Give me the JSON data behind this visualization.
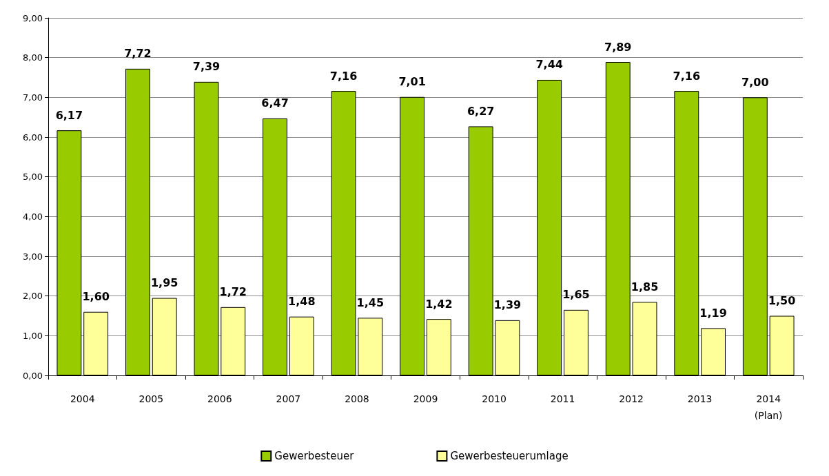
{
  "chart_data": {
    "type": "bar",
    "categories": [
      "2004",
      "2005",
      "2006",
      "2007",
      "2008",
      "2009",
      "2010",
      "2011",
      "2012",
      "2013",
      "2014\n(Plan)"
    ],
    "series": [
      {
        "name": "Gewerbesteuer",
        "color": "#99cc00",
        "values": [
          6.17,
          7.72,
          7.39,
          6.47,
          7.16,
          7.01,
          6.27,
          7.44,
          7.89,
          7.16,
          7.0
        ],
        "value_labels": [
          "6,17",
          "7,72",
          "7,39",
          "6,47",
          "7,16",
          "7,01",
          "6,27",
          "7,44",
          "7,89",
          "7,16",
          "7,00"
        ]
      },
      {
        "name": "Gewerbesteuerumlage",
        "color": "#ffff99",
        "values": [
          1.6,
          1.95,
          1.72,
          1.48,
          1.45,
          1.42,
          1.39,
          1.65,
          1.85,
          1.19,
          1.5
        ],
        "value_labels": [
          "1,60",
          "1,95",
          "1,72",
          "1,48",
          "1,45",
          "1,42",
          "1,39",
          "1,65",
          "1,85",
          "1,19",
          "1,50"
        ]
      }
    ],
    "ylim": [
      0,
      9
    ],
    "yticks": [
      {
        "value": 0,
        "label": "0,00"
      },
      {
        "value": 1,
        "label": "1,00"
      },
      {
        "value": 2,
        "label": "2,00"
      },
      {
        "value": 3,
        "label": "3,00"
      },
      {
        "value": 4,
        "label": "4,00"
      },
      {
        "value": 5,
        "label": "5,00"
      },
      {
        "value": 6,
        "label": "6,00"
      },
      {
        "value": 7,
        "label": "7,00"
      },
      {
        "value": 8,
        "label": "8,00"
      },
      {
        "value": 9,
        "label": "9,00"
      }
    ],
    "grid": "y",
    "legend": "bottom"
  }
}
